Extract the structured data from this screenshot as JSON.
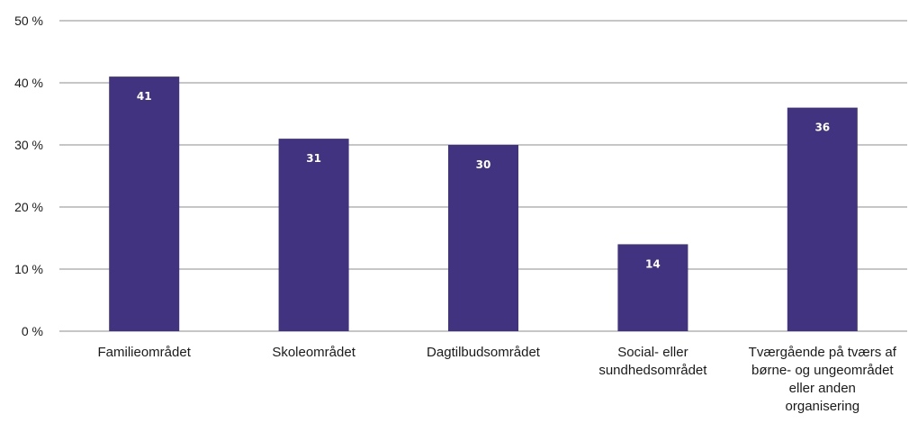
{
  "chart_data": {
    "type": "bar",
    "categories": [
      "Familieområdet",
      "Skoleområdet",
      "Dagtilbudsområdet",
      "Social- eller sundhedsområdet",
      "Tværgående på tværs af børne- og ungeområdet eller anden organisering"
    ],
    "category_lines": [
      [
        "Familieområdet"
      ],
      [
        "Skoleområdet"
      ],
      [
        "Dagtilbudsområdet"
      ],
      [
        "Social- eller",
        "sundhedsområdet"
      ],
      [
        "Tværgående på tværs af",
        "børne- og ungeområdet",
        "eller anden",
        "organisering"
      ]
    ],
    "values": [
      41,
      31,
      30,
      14,
      36
    ],
    "data_labels": [
      "41",
      "31",
      "30",
      "14",
      "36"
    ],
    "ylim": [
      0,
      50
    ],
    "yticks": [
      0,
      10,
      20,
      30,
      40,
      50
    ],
    "ytick_labels": [
      "0 %",
      "10 %",
      "20 %",
      "30 %",
      "40 %",
      "50 %"
    ],
    "title": "",
    "xlabel": "",
    "ylabel": "",
    "grid": true,
    "bar_color": "#41337f",
    "grid_color": "#8c8c8c"
  }
}
